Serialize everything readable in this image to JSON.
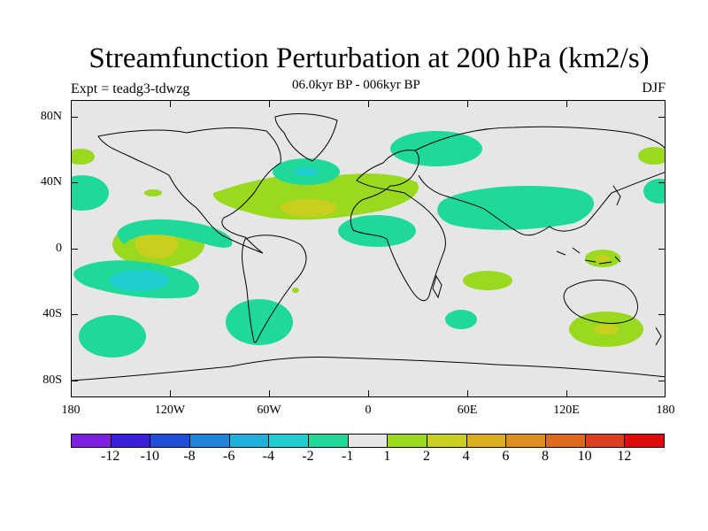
{
  "header": {
    "title": "Streamfunction Perturbation at 200 hPa (km2/s)",
    "subtitle": "06.0kyr BP - 006kyr BP",
    "experiment": "Expt = teadg3-tdwzg",
    "season": "DJF"
  },
  "map": {
    "lat_labels": [
      "80N",
      "40N",
      "0",
      "40S",
      "80S"
    ],
    "lon_labels": [
      "180",
      "120W",
      "60W",
      "0",
      "60E",
      "120E",
      "180"
    ],
    "background_color": "#e6e6e6"
  },
  "colorbar": {
    "labels": [
      "-12",
      "-10",
      "-8",
      "-6",
      "-4",
      "-2",
      "-1",
      "1",
      "2",
      "4",
      "6",
      "8",
      "10",
      "12"
    ],
    "colors": [
      "#7f1fe0",
      "#3a1fdc",
      "#1f4fd8",
      "#1f86dc",
      "#1fb0dc",
      "#1fcfcf",
      "#1fd998",
      "#e6e6e6",
      "#9ad91f",
      "#c8cf1f",
      "#d9af1f",
      "#dc8f1f",
      "#dc6a1f",
      "#dc3f1f",
      "#e00a0a"
    ]
  },
  "anomalies": [
    {
      "name": "north-atlantic-positive",
      "level": "2",
      "color": "#9ad91f"
    },
    {
      "name": "north-atlantic-core",
      "level": "4",
      "color": "#c8cf1f"
    },
    {
      "name": "east-pacific-core",
      "level": "4",
      "color": "#c8cf1f"
    },
    {
      "name": "south-pacific-negative",
      "level": "-2",
      "color": "#1fd998"
    },
    {
      "name": "asia-negative",
      "level": "-2",
      "color": "#1fd998"
    },
    {
      "name": "australia-positive",
      "level": "2",
      "color": "#9ad91f"
    }
  ]
}
